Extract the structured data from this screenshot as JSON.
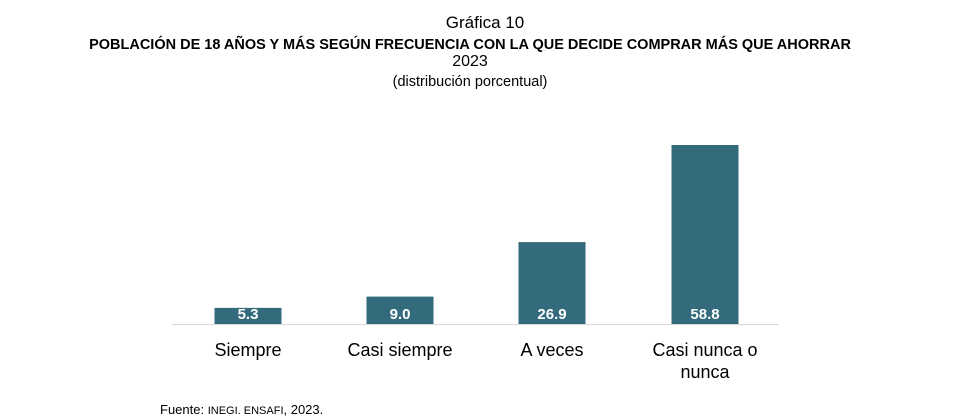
{
  "chart_data": {
    "type": "bar",
    "title": "Gráfica 10",
    "subtitle": "POBLACIÓN DE 18 AÑOS Y MÁS SEGÚN FRECUENCIA CON LA QUE DECIDE COMPRAR MÁS QUE AHORRAR",
    "year": "2023",
    "unit_note": "(distribución porcentual)",
    "categories": [
      [
        "Siempre"
      ],
      [
        "Casi siempre"
      ],
      [
        "A veces"
      ],
      [
        "Casi nunca o",
        "nunca"
      ]
    ],
    "values": [
      5.3,
      9.0,
      26.9,
      58.8
    ],
    "value_labels": [
      "5.3",
      "9.0",
      "26.9",
      "58.8"
    ],
    "xlabel": "",
    "ylabel": "",
    "ylim": [
      0,
      60
    ],
    "grid": false,
    "legend": "none",
    "bar_color": "#336b7d"
  },
  "source": {
    "prefix": "Fuente: ",
    "org": "INEGI. ENSAFI",
    "suffix": ", 2023."
  }
}
